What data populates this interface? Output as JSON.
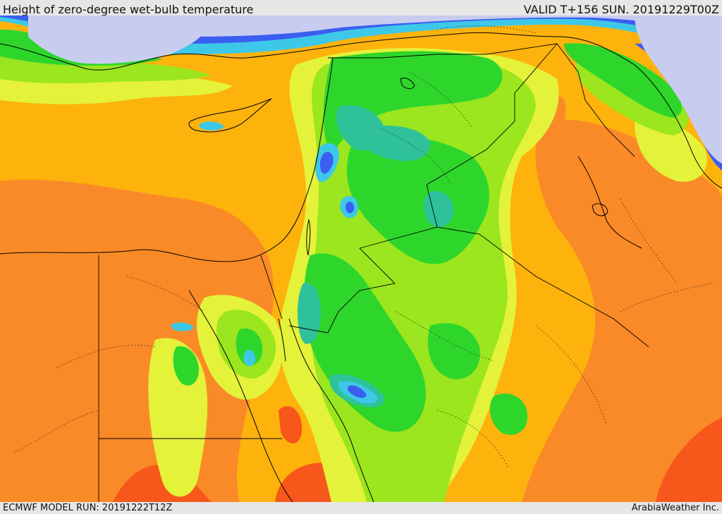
{
  "header": {
    "title": "Height of zero-degree wet-bulb temperature",
    "valid": "VALID T+156 SUN. 20191229T00Z"
  },
  "footer": {
    "model_run": "ECMWF MODEL RUN: 20191222T12Z",
    "credit": "ArabiaWeather Inc."
  },
  "colors": {
    "background": "#fdb30c",
    "level_orange": "#fa8a27",
    "level_red_orange": "#f7571b",
    "level_yellow": "#e4f23a",
    "level_lime": "#9be61e",
    "level_green": "#2ed62b",
    "level_teal": "#2fc29a",
    "level_cyan": "#3ec8e8",
    "level_blue": "#3a5ef0",
    "level_lavender": "#c8cdf0",
    "coastline": "#000000",
    "border": "#000000"
  }
}
